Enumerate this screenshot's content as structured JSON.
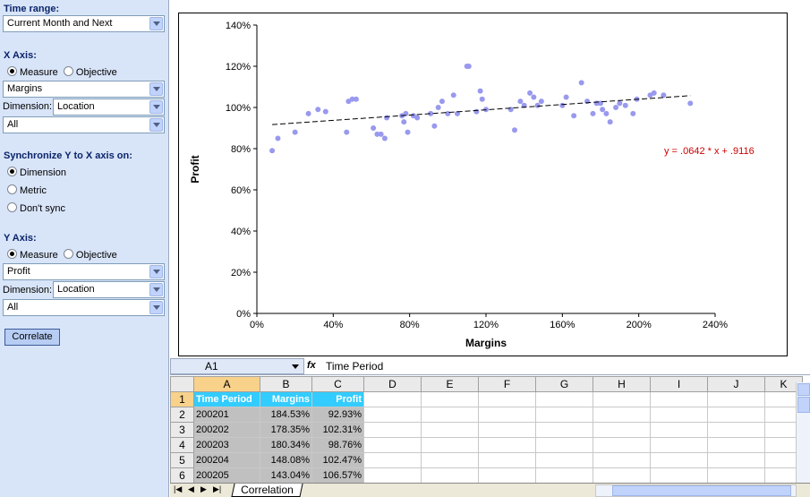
{
  "sidebar": {
    "time_range_label": "Time range:",
    "time_range_value": "Current Month and Next",
    "x_axis_label": "X Axis:",
    "x_measure": "Measure",
    "x_objective": "Objective",
    "x_measure_value": "Margins",
    "x_dimension_label": "Dimension:",
    "x_dimension_value": "Location",
    "x_filter_value": "All",
    "sync_label": "Synchronize Y to X axis on:",
    "sync_options": [
      "Dimension",
      "Metric",
      "Don't sync"
    ],
    "y_axis_label": "Y Axis:",
    "y_measure": "Measure",
    "y_objective": "Objective",
    "y_measure_value": "Profit",
    "y_dimension_label": "Dimension:",
    "y_dimension_value": "Location",
    "y_filter_value": "All",
    "correlate_label": "Correlate"
  },
  "chart_data": {
    "type": "scatter",
    "title": "",
    "xlabel": "Margins",
    "ylabel": "Profit",
    "xlim": [
      0,
      2.4
    ],
    "ylim": [
      0,
      1.4
    ],
    "x_ticks": [
      "0%",
      "40%",
      "80%",
      "120%",
      "160%",
      "200%",
      "240%"
    ],
    "y_ticks": [
      "0%",
      "20%",
      "40%",
      "60%",
      "80%",
      "100%",
      "120%",
      "140%"
    ],
    "trendline": {
      "slope": 0.0642,
      "intercept": 0.9116,
      "x_range": [
        0.08,
        2.27
      ],
      "label": "y = .0642 * x + .9116"
    },
    "colors": {
      "points": "#9999ee",
      "trend": "#000000",
      "equation": "#cc0000"
    },
    "points": [
      [
        0.08,
        0.79
      ],
      [
        0.11,
        0.85
      ],
      [
        0.2,
        0.88
      ],
      [
        0.27,
        0.97
      ],
      [
        0.32,
        0.99
      ],
      [
        0.36,
        0.98
      ],
      [
        0.47,
        0.88
      ],
      [
        0.48,
        1.03
      ],
      [
        0.5,
        1.04
      ],
      [
        0.52,
        1.04
      ],
      [
        0.61,
        0.9
      ],
      [
        0.63,
        0.87
      ],
      [
        0.65,
        0.87
      ],
      [
        0.67,
        0.85
      ],
      [
        0.68,
        0.95
      ],
      [
        0.76,
        0.96
      ],
      [
        0.77,
        0.93
      ],
      [
        0.78,
        0.97
      ],
      [
        0.79,
        0.88
      ],
      [
        0.82,
        0.96
      ],
      [
        0.84,
        0.95
      ],
      [
        0.91,
        0.97
      ],
      [
        0.93,
        0.91
      ],
      [
        0.95,
        1.0
      ],
      [
        0.97,
        1.03
      ],
      [
        1.0,
        0.97
      ],
      [
        1.03,
        1.06
      ],
      [
        1.05,
        0.97
      ],
      [
        1.1,
        1.2
      ],
      [
        1.11,
        1.2
      ],
      [
        1.15,
        0.98
      ],
      [
        1.17,
        1.08
      ],
      [
        1.18,
        1.04
      ],
      [
        1.2,
        0.99
      ],
      [
        1.33,
        0.99
      ],
      [
        1.35,
        0.89
      ],
      [
        1.38,
        1.03
      ],
      [
        1.4,
        1.01
      ],
      [
        1.43,
        1.07
      ],
      [
        1.45,
        1.05
      ],
      [
        1.47,
        1.01
      ],
      [
        1.49,
        1.03
      ],
      [
        1.6,
        1.01
      ],
      [
        1.62,
        1.05
      ],
      [
        1.66,
        0.96
      ],
      [
        1.7,
        1.12
      ],
      [
        1.73,
        1.03
      ],
      [
        1.76,
        0.97
      ],
      [
        1.78,
        1.02
      ],
      [
        1.8,
        1.02
      ],
      [
        1.81,
        0.99
      ],
      [
        1.83,
        0.97
      ],
      [
        1.85,
        0.93
      ],
      [
        1.88,
        1.0
      ],
      [
        1.9,
        1.02
      ],
      [
        1.93,
        1.01
      ],
      [
        1.97,
        0.97
      ],
      [
        1.99,
        1.04
      ],
      [
        2.06,
        1.06
      ],
      [
        2.08,
        1.07
      ],
      [
        2.13,
        1.06
      ],
      [
        2.27,
        1.02
      ]
    ]
  },
  "formula_bar": {
    "cell_ref": "A1",
    "fx": "fx",
    "value": "Time Period"
  },
  "sheet": {
    "columns": [
      "A",
      "B",
      "C",
      "D",
      "E",
      "F",
      "G",
      "H",
      "I",
      "J",
      "K"
    ],
    "header_row": [
      "Time Period",
      "Margins",
      "Profit"
    ],
    "rows": [
      [
        "200201",
        "184.53%",
        "92.93%"
      ],
      [
        "200202",
        "178.35%",
        "102.31%"
      ],
      [
        "200203",
        "180.34%",
        "98.76%"
      ],
      [
        "200204",
        "148.08%",
        "102.47%"
      ],
      [
        "200205",
        "143.04%",
        "106.57%"
      ]
    ],
    "row_numbers": [
      "1",
      "2",
      "3",
      "4",
      "5",
      "6"
    ],
    "tab_name": "Correlation"
  }
}
